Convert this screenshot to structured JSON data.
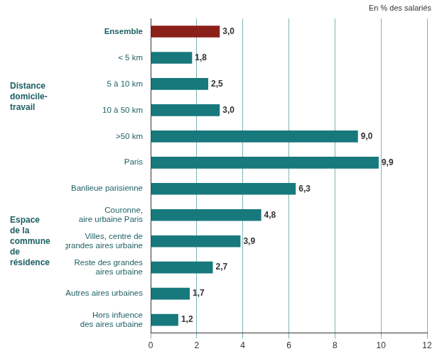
{
  "chart_data": {
    "type": "bar",
    "orientation": "horizontal",
    "annotation": "En % des salariés",
    "categories": [
      "Ensemble",
      "< 5 km",
      "5 à 10 km",
      "10 à 50 km",
      ">50 km",
      "Paris",
      "Banlieue parisienne",
      [
        "Couronne,",
        "aire urbaine Paris"
      ],
      [
        "Villes, centre de",
        "grandes aires urbaine"
      ],
      [
        "Reste des grandes",
        "aires urbaine"
      ],
      "Autres aires urbaines",
      [
        "Hors infuence",
        "des aires urbaine"
      ]
    ],
    "values": [
      3.0,
      1.8,
      2.5,
      3.0,
      9.0,
      9.9,
      6.3,
      4.8,
      3.9,
      2.7,
      1.7,
      1.2
    ],
    "value_labels": [
      "3,0",
      "1,8",
      "2,5",
      "3,0",
      "9,0",
      "9,9",
      "6,3",
      "4,8",
      "3,9",
      "2,7",
      "1,7",
      "1,2"
    ],
    "colors": [
      "#8b1f1a",
      "#17797c",
      "#17797c",
      "#17797c",
      "#17797c",
      "#17797c",
      "#17797c",
      "#17797c",
      "#17797c",
      "#17797c",
      "#17797c",
      "#17797c"
    ],
    "groups": [
      {
        "name": [
          "Distance",
          "domicile-",
          "travail"
        ],
        "members": [
          1,
          2,
          3,
          4
        ]
      },
      {
        "name": [
          "Espace",
          "de la",
          "commune",
          "de",
          "résidence"
        ],
        "members": [
          5,
          6,
          7,
          8,
          9,
          10,
          11
        ]
      }
    ],
    "xlim": [
      0,
      12
    ],
    "xticks": [
      0,
      2,
      4,
      6,
      8,
      10,
      12
    ],
    "grid": true,
    "data_labels": true
  }
}
